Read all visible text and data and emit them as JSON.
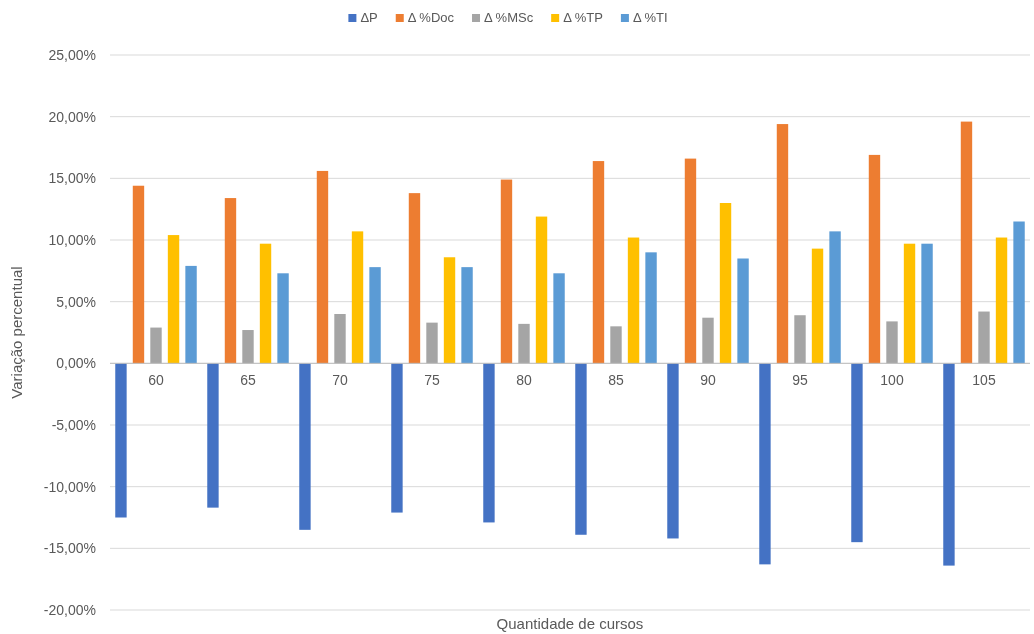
{
  "chart_data": {
    "type": "bar",
    "xlabel": "Quantidade de cursos",
    "ylabel": "Variação percentual",
    "categories": [
      "60",
      "65",
      "70",
      "75",
      "80",
      "85",
      "90",
      "95",
      "100",
      "105"
    ],
    "series": [
      {
        "name": "ΔP",
        "color": "#4472c4",
        "values": [
          -12.5,
          -11.7,
          -13.5,
          -12.1,
          -12.9,
          -13.9,
          -14.2,
          -16.3,
          -14.5,
          -16.4
        ]
      },
      {
        "name": "Δ %Doc",
        "color": "#ed7d31",
        "values": [
          14.4,
          13.4,
          15.6,
          13.8,
          14.9,
          16.4,
          16.6,
          19.4,
          16.9,
          19.6
        ]
      },
      {
        "name": "Δ %MSc",
        "color": "#a5a5a5",
        "values": [
          2.9,
          2.7,
          4.0,
          3.3,
          3.2,
          3.0,
          3.7,
          3.9,
          3.4,
          4.2
        ]
      },
      {
        "name": "Δ %TP",
        "color": "#ffc000",
        "values": [
          10.4,
          9.7,
          10.7,
          8.6,
          11.9,
          10.2,
          13.0,
          9.3,
          9.7,
          10.2
        ]
      },
      {
        "name": "Δ %TI",
        "color": "#5b9bd5",
        "values": [
          7.9,
          7.3,
          7.8,
          7.8,
          7.3,
          9.0,
          8.5,
          10.7,
          9.7,
          11.5
        ]
      }
    ],
    "ylim": [
      -20,
      25
    ],
    "yticks": [
      {
        "value": -20,
        "label": "-20,00%"
      },
      {
        "value": -15,
        "label": "-15,00%"
      },
      {
        "value": -10,
        "label": "-10,00%"
      },
      {
        "value": -5,
        "label": "-5,00%"
      },
      {
        "value": 0,
        "label": "0,00%"
      },
      {
        "value": 5,
        "label": "5,00%"
      },
      {
        "value": 10,
        "label": "10,00%"
      },
      {
        "value": 15,
        "label": "15,00%"
      },
      {
        "value": 20,
        "label": "20,00%"
      },
      {
        "value": 25,
        "label": "25,00%"
      }
    ],
    "grid": "y",
    "legend": "top"
  }
}
